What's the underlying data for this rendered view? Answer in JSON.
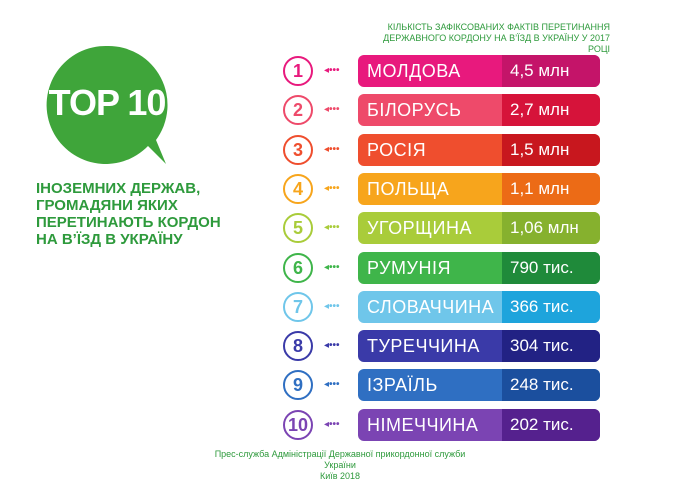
{
  "badge": {
    "text": "TOP 10"
  },
  "subtitle": "ІНОЗЕМНИХ ДЕРЖАВ, ГРОМАДЯНИ ЯКИХ ПЕРЕТИНАЮТЬ КОРДОН НА В’ЇЗД В УКРАЇНУ",
  "chart_title_line1": "КІЛЬКІСТЬ ЗАФІКСОВАНИХ ФАКТІВ ПЕРЕТИНАННЯ",
  "chart_title_line2": "ДЕРЖАВНОГО КОРДОНУ НА В’ЇЗД В УКРАЇНУ У 2017 РОЦІ",
  "footer_line1": "Прес-служба Адміністрації Державної прикордонної служби України",
  "footer_line2": "Київ 2018",
  "colors": {
    "green": "#2e9a3c"
  },
  "chart_data": {
    "type": "table",
    "rows": [
      {
        "rank": "1",
        "country": "МОЛДОВА",
        "value_label": "4,5 млн",
        "value": 4500000,
        "color": "#e8197d",
        "dark": "#c41469"
      },
      {
        "rank": "2",
        "country": "БІЛОРУСЬ",
        "value_label": "2,7 млн",
        "value": 2700000,
        "color": "#ee4a6a",
        "dark": "#d6133a"
      },
      {
        "rank": "3",
        "country": "РОСІЯ",
        "value_label": "1,5 млн",
        "value": 1500000,
        "color": "#ef4e2e",
        "dark": "#c8171e"
      },
      {
        "rank": "4",
        "country": "ПОЛЬЩА",
        "value_label": "1,1 млн",
        "value": 1100000,
        "color": "#f7a51c",
        "dark": "#ec6b16"
      },
      {
        "rank": "5",
        "country": "УГОРЩИНА",
        "value_label": "1,06 млн",
        "value": 1060000,
        "color": "#a9cc3a",
        "dark": "#86b12e"
      },
      {
        "rank": "6",
        "country": "РУМУНІЯ",
        "value_label": "790 тис.",
        "value": 790000,
        "color": "#3fb54a",
        "dark": "#1f8a3a"
      },
      {
        "rank": "7",
        "country": "СЛОВАЧЧИНА",
        "value_label": "366 тис.",
        "value": 366000,
        "color": "#6fc6ea",
        "dark": "#1ea4dc"
      },
      {
        "rank": "8",
        "country": "ТУРЕЧЧИНА",
        "value_label": "304 тис.",
        "value": 304000,
        "color": "#3a3aa8",
        "dark": "#222284"
      },
      {
        "rank": "9",
        "country": "ІЗРАЇЛЬ",
        "value_label": "248 тис.",
        "value": 248000,
        "color": "#2f6fc2",
        "dark": "#1b4f9e"
      },
      {
        "rank": "10",
        "country": "НІМЕЧЧИНА",
        "value_label": "202 тис.",
        "value": 202000,
        "color": "#7b44b3",
        "dark": "#55218e"
      }
    ]
  }
}
